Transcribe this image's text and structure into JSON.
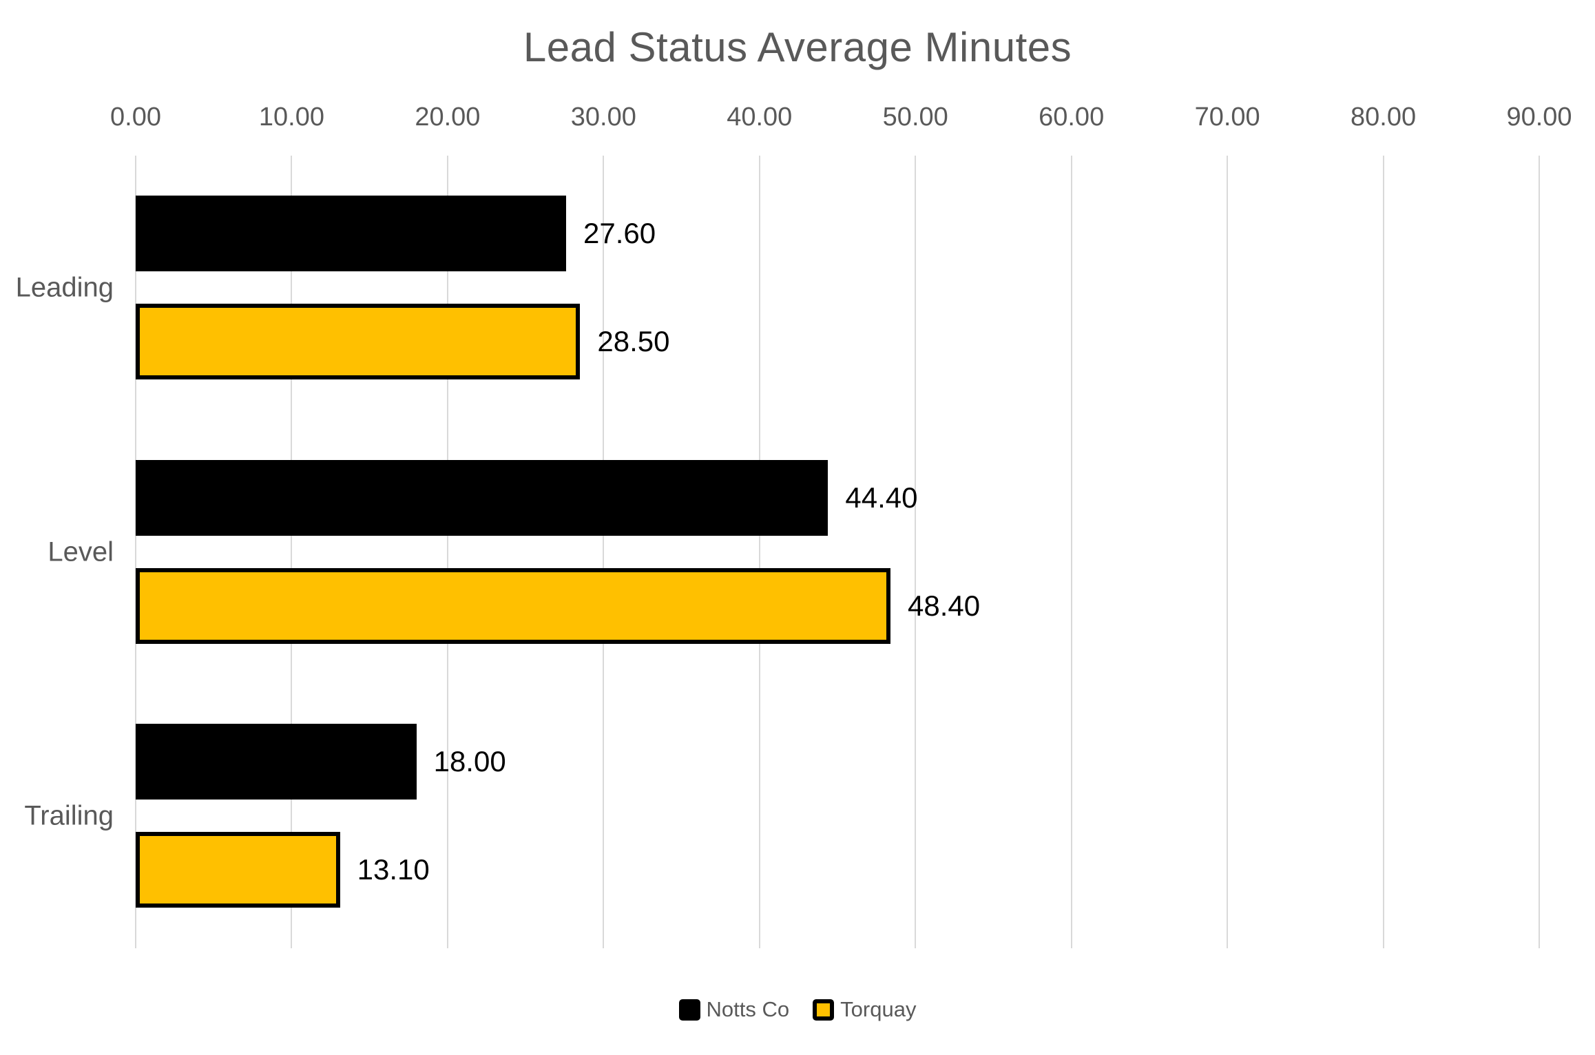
{
  "chart_data": {
    "type": "bar",
    "orientation": "horizontal",
    "title": "Lead Status Average Minutes",
    "categories": [
      "Leading",
      "Level",
      "Trailing"
    ],
    "series": [
      {
        "name": "Notts Co",
        "color": "#000000",
        "border_color": null,
        "values": [
          27.6,
          44.4,
          18.0
        ],
        "value_labels": [
          "27.60",
          "44.40",
          "18.00"
        ]
      },
      {
        "name": "Torquay",
        "color": "#FFC000",
        "border_color": "#000000",
        "values": [
          28.5,
          48.4,
          13.1
        ],
        "value_labels": [
          "28.50",
          "48.40",
          "13.10"
        ]
      }
    ],
    "value_axis": {
      "min": 0,
      "max": 90,
      "step": 10,
      "position": "top",
      "tick_labels": [
        "0.00",
        "10.00",
        "20.00",
        "30.00",
        "40.00",
        "50.00",
        "60.00",
        "70.00",
        "80.00",
        "90.00"
      ]
    },
    "grid": true,
    "legend_position": "bottom",
    "colors": {
      "title_text": "#595959",
      "axis_text": "#595959",
      "category_text": "#595959",
      "data_label_text": "#000000",
      "gridline": "#D9D9D9",
      "background": "#FFFFFF"
    }
  }
}
